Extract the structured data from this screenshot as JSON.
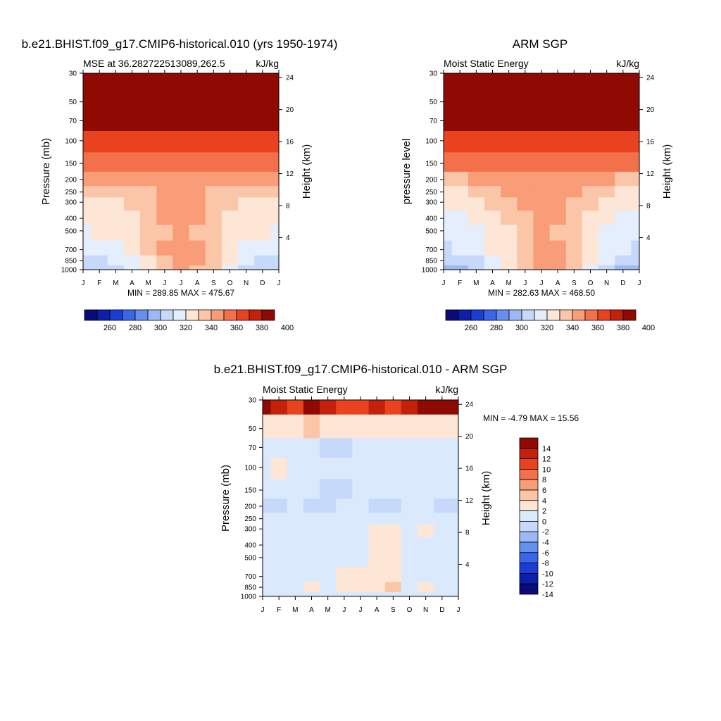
{
  "chart_data": [
    {
      "type": "heatmap",
      "title": "b.e21.BHIST.f09_g17.CMIP6-historical.010 (yrs 1950-1974)",
      "subtitle_left": "MSE at 36.282722513089,262.5",
      "subtitle_right": "kJ/kg",
      "ylabel": "Pressure (mb)",
      "ylabel_right": "Height (km)",
      "stats": "MIN = 289.85 MAX = 475.67",
      "x": [
        "J",
        "F",
        "M",
        "A",
        "M",
        "J",
        "J",
        "A",
        "S",
        "O",
        "N",
        "D",
        "J"
      ],
      "pressure_ticks": [
        "30",
        "50",
        "70",
        "100",
        "150",
        "200",
        "250",
        "300",
        "400",
        "500",
        "700",
        "850",
        "1000"
      ],
      "height_ticks": [
        "24",
        "20",
        "16",
        "12",
        "8",
        "4"
      ],
      "colorbar": [
        "260",
        "280",
        "300",
        "320",
        "340",
        "360",
        "380",
        "400"
      ],
      "levels_mb": [
        1000,
        850,
        700,
        500,
        400,
        300,
        250,
        200,
        150,
        100,
        70,
        50,
        30
      ],
      "values": [
        [
          300,
          302,
          306,
          312,
          322,
          332,
          340,
          338,
          330,
          318,
          306,
          302,
          300
        ],
        [
          306,
          308,
          312,
          316,
          326,
          336,
          344,
          342,
          334,
          322,
          312,
          308,
          306
        ],
        [
          310,
          312,
          316,
          322,
          330,
          340,
          344,
          342,
          334,
          324,
          316,
          312,
          310
        ],
        [
          318,
          320,
          322,
          326,
          332,
          338,
          340,
          338,
          334,
          328,
          322,
          320,
          318
        ],
        [
          320,
          322,
          324,
          328,
          334,
          340,
          342,
          340,
          334,
          328,
          322,
          320,
          320
        ],
        [
          324,
          326,
          328,
          330,
          336,
          340,
          342,
          340,
          336,
          330,
          326,
          324,
          324
        ],
        [
          330,
          332,
          334,
          336,
          338,
          341,
          341,
          340,
          338,
          334,
          332,
          330,
          330
        ],
        [
          340,
          340,
          341,
          342,
          343,
          345,
          346,
          345,
          343,
          341,
          340,
          340,
          340
        ],
        [
          352,
          352,
          353,
          353,
          354,
          355,
          355,
          355,
          354,
          353,
          352,
          352,
          352
        ],
        [
          366,
          366,
          366,
          367,
          367,
          368,
          368,
          368,
          367,
          367,
          366,
          366,
          366
        ],
        [
          388,
          388,
          388,
          389,
          390,
          392,
          393,
          392,
          390,
          389,
          388,
          388,
          388
        ],
        [
          405,
          405,
          405,
          405,
          405,
          405,
          405,
          405,
          405,
          405,
          405,
          405,
          405
        ],
        [
          430,
          430,
          430,
          430,
          430,
          430,
          430,
          430,
          430,
          430,
          430,
          430,
          430
        ]
      ]
    },
    {
      "type": "heatmap",
      "title": "ARM SGP",
      "subtitle_left": "Moist Static Energy",
      "subtitle_right": "kJ/kg",
      "ylabel": "pressure level",
      "ylabel_right": "Height (km)",
      "stats": "MIN = 282.63 MAX = 468.50",
      "x": [
        "J",
        "F",
        "M",
        "A",
        "M",
        "J",
        "J",
        "A",
        "S",
        "O",
        "N",
        "D",
        "J"
      ],
      "pressure_ticks": [
        "30",
        "50",
        "70",
        "100",
        "150",
        "200",
        "250",
        "300",
        "400",
        "500",
        "700",
        "850",
        "1000"
      ],
      "height_ticks": [
        "24",
        "20",
        "16",
        "12",
        "8",
        "4"
      ],
      "colorbar": [
        "260",
        "280",
        "300",
        "320",
        "340",
        "360",
        "380",
        "400"
      ],
      "levels_mb": [
        1000,
        850,
        700,
        500,
        400,
        300,
        250,
        200,
        150,
        100,
        70,
        50,
        30
      ],
      "values": [
        [
          296,
          298,
          304,
          312,
          322,
          334,
          344,
          342,
          332,
          318,
          304,
          298,
          296
        ],
        [
          302,
          304,
          308,
          316,
          324,
          334,
          346,
          344,
          334,
          322,
          310,
          304,
          302
        ],
        [
          308,
          310,
          314,
          320,
          328,
          336,
          342,
          340,
          334,
          324,
          314,
          310,
          308
        ],
        [
          314,
          316,
          318,
          322,
          328,
          336,
          340,
          338,
          334,
          326,
          318,
          316,
          314
        ],
        [
          316,
          318,
          322,
          326,
          332,
          338,
          342,
          340,
          336,
          328,
          322,
          318,
          316
        ],
        [
          320,
          322,
          326,
          330,
          336,
          340,
          342,
          340,
          336,
          330,
          326,
          322,
          320
        ],
        [
          326,
          328,
          332,
          336,
          340,
          343,
          343,
          342,
          340,
          336,
          332,
          328,
          326
        ],
        [
          338,
          338,
          340,
          342,
          345,
          348,
          349,
          348,
          345,
          342,
          340,
          338,
          338
        ],
        [
          352,
          352,
          352,
          353,
          354,
          355,
          356,
          355,
          354,
          353,
          352,
          352,
          352
        ],
        [
          366,
          366,
          366,
          367,
          368,
          369,
          369,
          368,
          368,
          367,
          366,
          366,
          366
        ],
        [
          388,
          388,
          388,
          389,
          390,
          392,
          393,
          392,
          390,
          389,
          388,
          388,
          388
        ],
        [
          405,
          405,
          405,
          405,
          405,
          405,
          405,
          405,
          405,
          405,
          405,
          405,
          405
        ],
        [
          430,
          430,
          430,
          430,
          430,
          430,
          430,
          430,
          430,
          430,
          430,
          430,
          430
        ]
      ]
    },
    {
      "type": "heatmap",
      "title": "b.e21.BHIST.f09_g17.CMIP6-historical.010 - ARM SGP",
      "subtitle_left": "Moist Static Energy",
      "subtitle_right": "kJ/kg",
      "ylabel": "Pressure (mb)",
      "ylabel_right": "Height (km)",
      "stats": "MIN =  -4.79 MAX =  15.56",
      "x": [
        "J",
        "F",
        "M",
        "A",
        "M",
        "J",
        "J",
        "A",
        "S",
        "O",
        "N",
        "D",
        "J"
      ],
      "pressure_ticks": [
        "30",
        "50",
        "70",
        "100",
        "150",
        "200",
        "250",
        "300",
        "400",
        "500",
        "700",
        "850",
        "1000"
      ],
      "height_ticks": [
        "24",
        "20",
        "16",
        "12",
        "8",
        "4"
      ],
      "colorbar": [
        "14",
        "12",
        "10",
        "8",
        "6",
        "4",
        "2",
        "0",
        "-2",
        "-4",
        "-6",
        "-8",
        "-10",
        "-12",
        "-14"
      ],
      "levels_mb": [
        1000,
        850,
        700,
        500,
        400,
        300,
        250,
        200,
        150,
        100,
        70,
        50,
        30
      ],
      "values": [
        [
          -1.5,
          -0.5,
          -0.8,
          -0.5,
          -0.5,
          -0.5,
          -1.2,
          -1.5,
          -0.5,
          -0.5,
          -0.5,
          -1.8,
          -1.5
        ],
        [
          -0.5,
          -0.5,
          -0.5,
          0.5,
          -0.5,
          0.8,
          0.5,
          1.5,
          3.5,
          -0.5,
          0.5,
          -1.8,
          -0.5
        ],
        [
          -0.5,
          -0.5,
          -0.5,
          -0.5,
          -0.5,
          0.5,
          0.3,
          1.5,
          1.8,
          -0.5,
          -0.5,
          -1.8,
          -0.5
        ],
        [
          -0.5,
          -0.5,
          -0.5,
          -0.5,
          -0.5,
          -0.5,
          -0.5,
          1.0,
          1.8,
          -0.5,
          -0.5,
          -0.8,
          -0.5
        ],
        [
          -0.5,
          -0.5,
          -0.5,
          -0.5,
          -0.5,
          -0.5,
          -0.5,
          0.5,
          1.5,
          -0.5,
          -0.5,
          -0.5,
          -0.5
        ],
        [
          -0.5,
          -0.5,
          -0.5,
          -0.5,
          -0.5,
          -0.5,
          -0.5,
          0.3,
          1.0,
          -0.5,
          0.5,
          -0.5,
          -0.5
        ],
        [
          -0.8,
          -0.8,
          -0.5,
          -0.5,
          -0.8,
          -0.8,
          -0.5,
          -0.5,
          -0.5,
          -0.5,
          -0.5,
          -0.8,
          -0.8
        ],
        [
          -2.5,
          -2.5,
          -0.8,
          -2.5,
          -2.5,
          -1.5,
          -0.8,
          -2.5,
          -2.5,
          -0.8,
          -0.8,
          -2.5,
          -2.5
        ],
        [
          -0.5,
          -0.5,
          -0.5,
          -0.5,
          -2.5,
          -2.5,
          -0.5,
          -0.5,
          -0.5,
          -0.5,
          -0.5,
          -0.5,
          -0.5
        ],
        [
          -0.5,
          0.5,
          -0.5,
          -0.5,
          -0.5,
          -0.5,
          -0.5,
          -0.5,
          -0.5,
          -0.5,
          -0.5,
          -0.5,
          -0.5
        ],
        [
          -0.5,
          -0.5,
          -0.5,
          -0.5,
          -2.5,
          -2.5,
          -0.5,
          -0.5,
          -0.5,
          -0.5,
          -0.5,
          -0.5,
          -0.5
        ],
        [
          1.5,
          1.5,
          1.0,
          2.5,
          1.5,
          1.5,
          1.5,
          1.5,
          1.0,
          1.5,
          1.5,
          1.5,
          1.5
        ],
        [
          13,
          10,
          8,
          12,
          10,
          8,
          9,
          11,
          8,
          11,
          13,
          14,
          15
        ]
      ]
    }
  ]
}
